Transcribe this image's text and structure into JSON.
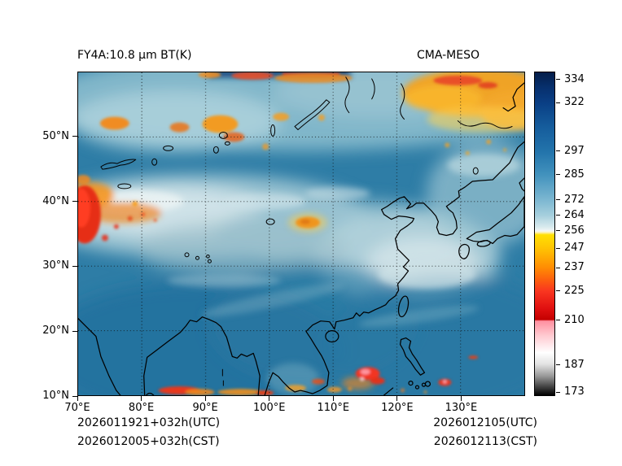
{
  "titles": {
    "left": "FY4A:10.8 μm BT(K)",
    "right": "CMA-MESO"
  },
  "footer": {
    "run_utc": "2026011921+032h(UTC)",
    "run_cst": "2026012005+032h(CST)",
    "valid_utc": "2026012105(UTC)",
    "valid_cst": "2026012113(CST)"
  },
  "axes": {
    "lat": {
      "range": [
        10,
        60
      ],
      "ticks": [
        {
          "label": "50°N",
          "value": 50
        },
        {
          "label": "40°N",
          "value": 40
        },
        {
          "label": "30°N",
          "value": 30
        },
        {
          "label": "20°N",
          "value": 20
        },
        {
          "label": "10°N",
          "value": 10
        }
      ]
    },
    "lon": {
      "range": [
        70,
        140
      ],
      "ticks": [
        {
          "label": "70°E",
          "value": 70
        },
        {
          "label": "80°E",
          "value": 80
        },
        {
          "label": "90°E",
          "value": 90
        },
        {
          "label": "100°E",
          "value": 100
        },
        {
          "label": "110°E",
          "value": 110
        },
        {
          "label": "120°E",
          "value": 120
        },
        {
          "label": "130°E",
          "value": 130
        }
      ]
    }
  },
  "colorbar": {
    "units": "K",
    "range": [
      171,
      338
    ],
    "ticks": [
      334,
      322,
      297,
      285,
      272,
      264,
      256,
      247,
      237,
      225,
      210,
      187,
      173
    ],
    "stops": [
      {
        "value": 338,
        "color": "#051e4a"
      },
      {
        "value": 330,
        "color": "#07306e"
      },
      {
        "value": 322,
        "color": "#0a3f85"
      },
      {
        "value": 310,
        "color": "#155c9c"
      },
      {
        "value": 297,
        "color": "#2374ab"
      },
      {
        "value": 285,
        "color": "#4292bd"
      },
      {
        "value": 272,
        "color": "#7cb7d1"
      },
      {
        "value": 264,
        "color": "#a6cfdd"
      },
      {
        "value": 258,
        "color": "#d9eaee"
      },
      {
        "value": 256,
        "color": "#f2f7f7"
      },
      {
        "value": 255.2,
        "color": "#fff2b0"
      },
      {
        "value": 254,
        "color": "#ffe003"
      },
      {
        "value": 247,
        "color": "#ffc303"
      },
      {
        "value": 240,
        "color": "#ff9d03"
      },
      {
        "value": 237,
        "color": "#ff8c03"
      },
      {
        "value": 230,
        "color": "#fc5a10"
      },
      {
        "value": 225,
        "color": "#f93620"
      },
      {
        "value": 216,
        "color": "#e01010"
      },
      {
        "value": 210,
        "color": "#c40000"
      },
      {
        "value": 209.4,
        "color": "#ff8fa0"
      },
      {
        "value": 202,
        "color": "#ffc9d0"
      },
      {
        "value": 193,
        "color": "#ffffff"
      },
      {
        "value": 187,
        "color": "#e2e2e2"
      },
      {
        "value": 181,
        "color": "#9a9a9a"
      },
      {
        "value": 175,
        "color": "#3c3c3c"
      },
      {
        "value": 171,
        "color": "#000000"
      }
    ]
  },
  "chart_data": {
    "type": "heatmap",
    "title": "FY4A:10.8 μm BT(K)",
    "model": "CMA-MESO",
    "variable": "FY4A 10.8 μm brightness temperature",
    "units": "K",
    "x_axis": {
      "label": "longitude",
      "range_deg_east": [
        70,
        140
      ],
      "tick_labels": [
        "70°E",
        "80°E",
        "90°E",
        "100°E",
        "110°E",
        "120°E",
        "130°E"
      ]
    },
    "y_axis": {
      "label": "latitude",
      "range_deg_north": [
        10,
        60
      ],
      "tick_labels": [
        "10°N",
        "20°N",
        "30°N",
        "40°N",
        "50°N"
      ]
    },
    "colorbar_ticks_K": [
      334,
      322,
      297,
      285,
      272,
      264,
      256,
      247,
      237,
      225,
      210,
      187,
      173
    ],
    "value_range_K": [
      171,
      338
    ],
    "legend_position": "right",
    "grid": "dotted",
    "init_time_utc": "2026011921+032h(UTC)",
    "init_time_cst": "2026012005+032h(CST)",
    "valid_time_utc": "2026012105(UTC)",
    "valid_time_cst": "2026012113(CST)",
    "features": [
      "Broad mid-blue field (~272-290 K) covering most of the domain",
      "Bright red very cold cloud patch (~210-225 K) on the western edge near 34-42°N, 70-73°E with orange speckles extending east to ~82°E",
      "Large orange cold-cloud mass (~237-247 K) in the northeast corner near 125-140°E, 54-60°N with small red streaks",
      "Scattered orange cells along the top edge and near 50-54°N between 75-103°E; dark navy warm streak on the top edge near 90-112°E",
      "Whitish cloud band (~256-264 K) stretching across 30-40°N, brightest west of 100°E and over east China",
      "Isolated orange cell (~240 K) near 105.5°E, 37°N",
      "Convective red/pink cells (~187-225 K) along the southern edge (10-14°N) between 85-128°E, strongest near the Philippines (~113-117°E)",
      "Black coastlines: India, Indochina, China, Korea, Japan, Taiwan, Hainan, Luzon; outlines of Lake Balkhash, Lake Baikal, Qinghai Lake and Mongolian/Tibetan lakes"
    ]
  }
}
